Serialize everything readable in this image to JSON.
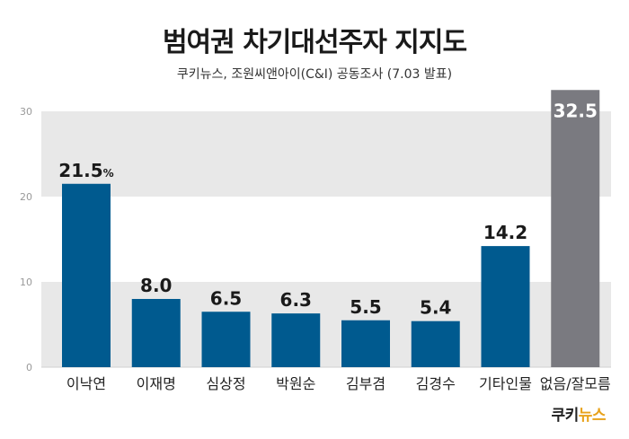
{
  "title": "범여권 차기대선주자 지지도",
  "subtitle": "쿠키뉴스, 조원씨앤아이(C&I) 공동조사 (7.03 발표)",
  "logo": {
    "part1": "쿠키",
    "part2": "뉴스"
  },
  "colors": {
    "bar": "#005a8f",
    "bar_highlight": "#7a7a80",
    "band": "#e8e8e8",
    "text": "#1a1a1a",
    "logo_accent": "#e8a21a"
  },
  "chart_data": {
    "type": "bar",
    "categories": [
      "이낙연",
      "이재명",
      "심상정",
      "박원순",
      "김부겸",
      "김경수",
      "기타인물",
      "없음/잘모름"
    ],
    "values": [
      21.5,
      8.0,
      6.5,
      6.3,
      5.5,
      5.4,
      14.2,
      32.5
    ],
    "value_labels": [
      "21.5",
      "8.0",
      "6.5",
      "6.3",
      "5.5",
      "5.4",
      "14.2",
      "32.5"
    ],
    "first_label_unit": "%",
    "highlight_index": 7,
    "yticks": [
      0,
      10,
      20,
      30
    ],
    "ylim": [
      0,
      30
    ],
    "grid": "alternating bands"
  }
}
